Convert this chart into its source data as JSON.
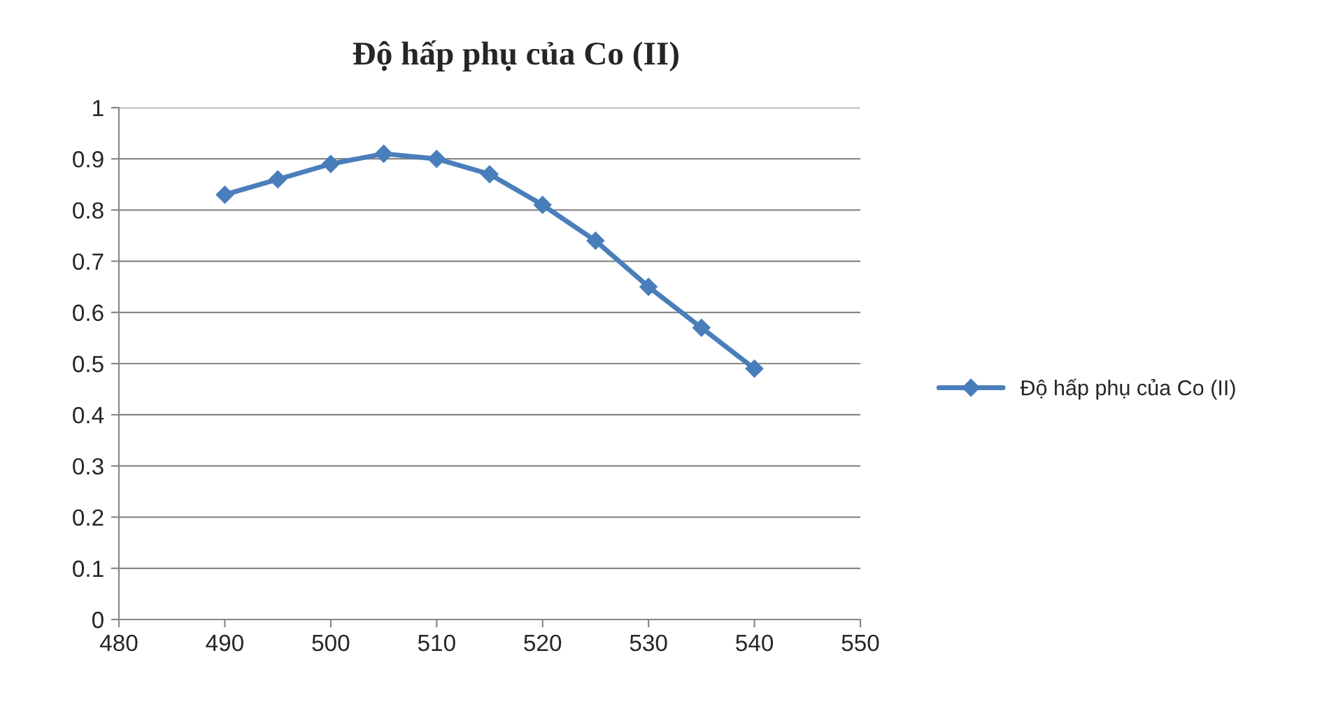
{
  "chart_data": {
    "type": "line",
    "title": "Độ hấp phụ của Co (II)",
    "x": [
      490,
      495,
      500,
      505,
      510,
      515,
      520,
      525,
      530,
      535,
      540
    ],
    "series": [
      {
        "name": "Độ hấp phụ của Co (II)",
        "color": "#4a7ebb",
        "values": [
          0.83,
          0.86,
          0.89,
          0.91,
          0.9,
          0.87,
          0.81,
          0.74,
          0.65,
          0.57,
          0.49
        ]
      }
    ],
    "xlim": [
      480,
      550
    ],
    "xticks": [
      480,
      490,
      500,
      510,
      520,
      530,
      540,
      550
    ],
    "ylim": [
      0,
      1
    ],
    "yticks": [
      0,
      0.1,
      0.2,
      0.3,
      0.4,
      0.5,
      0.6,
      0.7,
      0.8,
      0.9,
      1
    ],
    "grid": "y",
    "legend": "right",
    "marker": "diamond",
    "line_style": "solid"
  }
}
